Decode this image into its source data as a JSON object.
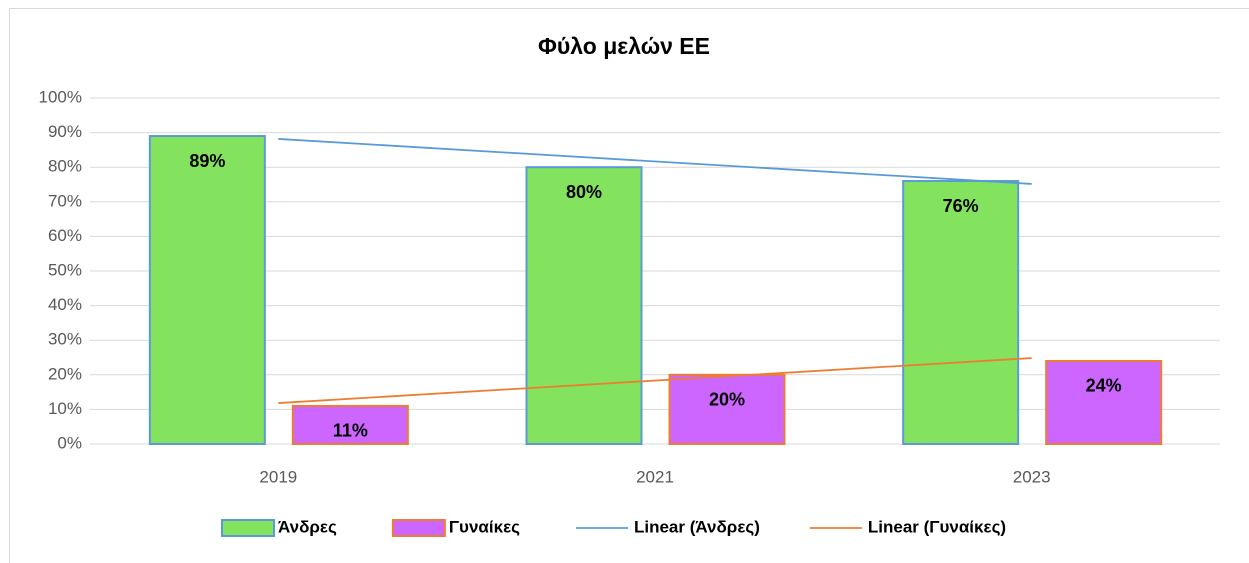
{
  "chart_data": {
    "type": "bar",
    "title": "Φύλο μελών ΕΕ",
    "categories": [
      "2019",
      "2021",
      "2023"
    ],
    "series": [
      {
        "name": "Άνδρες",
        "color": "#84e35e",
        "edge_color": "#5b9bd5",
        "values": [
          89,
          80,
          76
        ],
        "value_labels": [
          "89%",
          "80%",
          "76%"
        ]
      },
      {
        "name": "Γυναίκες",
        "color": "#cc66ff",
        "edge_color": "#ed7d31",
        "values": [
          11,
          20,
          24
        ],
        "value_labels": [
          "11%",
          "20%",
          "24%"
        ]
      }
    ],
    "trendlines": [
      {
        "name": "Linear (Άνδρες)",
        "color": "#5b9bd5",
        "series": 0,
        "kind": "linear"
      },
      {
        "name": "Linear (Γυναίκες)",
        "color": "#ed7d31",
        "series": 1,
        "kind": "linear"
      }
    ],
    "ylim": [
      0,
      100
    ],
    "yticks": [
      {
        "value": 0,
        "label": "0%"
      },
      {
        "value": 10,
        "label": "10%"
      },
      {
        "value": 20,
        "label": "20%"
      },
      {
        "value": 30,
        "label": "30%"
      },
      {
        "value": 40,
        "label": "40%"
      },
      {
        "value": 50,
        "label": "50%"
      },
      {
        "value": 60,
        "label": "60%"
      },
      {
        "value": 70,
        "label": "70%"
      },
      {
        "value": 80,
        "label": "80%"
      },
      {
        "value": 90,
        "label": "90%"
      },
      {
        "value": 100,
        "label": "100%"
      }
    ],
    "grid": true,
    "legend": "bottom"
  }
}
